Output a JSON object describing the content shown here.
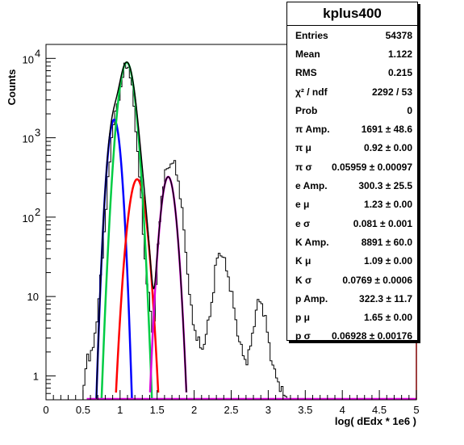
{
  "chart_data": {
    "type": "line",
    "title": "kplus400",
    "xlabel": "log( dEdx * 1e6 )",
    "ylabel": "Counts",
    "xlim": [
      0,
      5
    ],
    "ylim": [
      0.5,
      15000
    ],
    "y_scale": "log",
    "x_ticks": [
      "0",
      "0.5",
      "1",
      "1.5",
      "2",
      "2.5",
      "3",
      "3.5",
      "4",
      "4.5",
      "5"
    ],
    "y_ticks": [
      {
        "base": "10",
        "exp": "4",
        "value": 10000
      },
      {
        "base": "10",
        "exp": "3",
        "value": 1000
      },
      {
        "base": "10",
        "exp": "2",
        "value": 100
      },
      {
        "base": "10",
        "value": 10
      },
      {
        "base": "1",
        "value": 1
      }
    ],
    "stats": [
      {
        "label": "Entries",
        "value": "54378"
      },
      {
        "label": "Mean",
        "value": "1.122"
      },
      {
        "label": "RMS",
        "value": "0.215"
      },
      {
        "label": "χ² / ndf",
        "value": "2292 / 53"
      },
      {
        "label": "Prob",
        "value": "0"
      },
      {
        "label": "π Amp.",
        "value": "1691 ± 48.6"
      },
      {
        "label": "π μ",
        "value": "0.92 ± 0.00"
      },
      {
        "label": "π σ",
        "value": "0.05959 ± 0.00097"
      },
      {
        "label": "e Amp.",
        "value": "300.3 ± 25.5"
      },
      {
        "label": "e μ",
        "value": "1.23 ± 0.00"
      },
      {
        "label": "e σ",
        "value": "0.081 ± 0.001"
      },
      {
        "label": "K Amp.",
        "value": "8891 ± 60.0"
      },
      {
        "label": "K μ",
        "value": "1.09 ± 0.00"
      },
      {
        "label": "K σ",
        "value": "0.0769 ± 0.0006"
      },
      {
        "label": "p Amp.",
        "value": "322.3 ± 11.7"
      },
      {
        "label": "p μ",
        "value": "1.65 ± 0.00"
      },
      {
        "label": "p σ",
        "value": "0.06928 ± 0.00176"
      }
    ],
    "histogram": {
      "bin_width": 0.025,
      "points": [
        [
          0.5,
          0.5
        ],
        [
          0.55,
          2
        ],
        [
          0.6,
          1.5
        ],
        [
          0.65,
          3
        ],
        [
          0.7,
          6
        ],
        [
          0.75,
          25
        ],
        [
          0.8,
          90
        ],
        [
          0.85,
          400
        ],
        [
          0.9,
          1400
        ],
        [
          0.95,
          2200
        ],
        [
          1.0,
          3800
        ],
        [
          1.05,
          7000
        ],
        [
          1.1,
          8800
        ],
        [
          1.15,
          5500
        ],
        [
          1.2,
          1800
        ],
        [
          1.25,
          500
        ],
        [
          1.3,
          100
        ],
        [
          1.35,
          20
        ],
        [
          1.4,
          8
        ],
        [
          1.45,
          3
        ],
        [
          1.5,
          25
        ],
        [
          1.55,
          150
        ],
        [
          1.6,
          330
        ],
        [
          1.65,
          420
        ],
        [
          1.7,
          520
        ],
        [
          1.75,
          420
        ],
        [
          1.8,
          250
        ],
        [
          1.85,
          90
        ],
        [
          1.9,
          28
        ],
        [
          1.95,
          8
        ],
        [
          2.0,
          4
        ],
        [
          2.05,
          3
        ],
        [
          2.1,
          2
        ],
        [
          2.15,
          3
        ],
        [
          2.2,
          5
        ],
        [
          2.25,
          10
        ],
        [
          2.3,
          28
        ],
        [
          2.35,
          38
        ],
        [
          2.4,
          30
        ],
        [
          2.45,
          20
        ],
        [
          2.5,
          12
        ],
        [
          2.55,
          6
        ],
        [
          2.6,
          3
        ],
        [
          2.65,
          2
        ],
        [
          2.7,
          1.5
        ],
        [
          2.75,
          2
        ],
        [
          2.8,
          4
        ],
        [
          2.85,
          8
        ],
        [
          2.9,
          9
        ],
        [
          2.95,
          6
        ],
        [
          3.0,
          3
        ],
        [
          3.05,
          1.5
        ],
        [
          3.1,
          1
        ],
        [
          3.15,
          0.8
        ],
        [
          3.2,
          0.6
        ],
        [
          3.25,
          0.5
        ]
      ]
    },
    "fits": [
      {
        "name": "π",
        "color": "#0000ff",
        "amp": 1691,
        "mu": 0.92,
        "sigma": 0.05959
      },
      {
        "name": "e",
        "color": "#ff0000",
        "amp": 300.3,
        "mu": 1.23,
        "sigma": 0.081
      },
      {
        "name": "K",
        "color": "#00cc44",
        "amp": 8891,
        "mu": 1.09,
        "sigma": 0.0769
      },
      {
        "name": "p",
        "color": "#dd00dd",
        "amp": 322.3,
        "mu": 1.65,
        "sigma": 0.06928
      }
    ],
    "sum_color": "#000000"
  }
}
